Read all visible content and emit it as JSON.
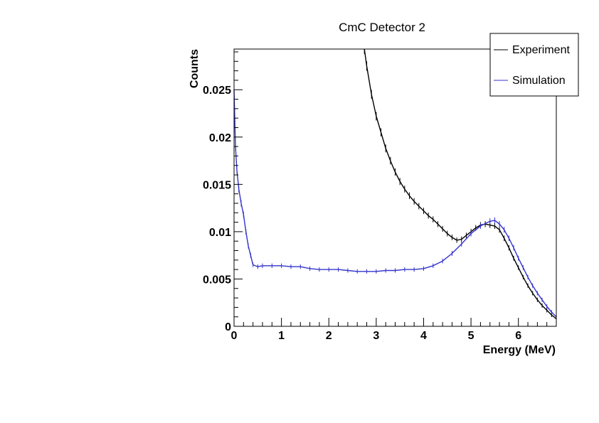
{
  "chart_data": {
    "type": "line",
    "title": "CmC Detector 2",
    "xlabel": "Energy (MeV)",
    "ylabel": "Counts",
    "xlim": [
      0,
      6.8
    ],
    "ylim": [
      0,
      0.0293
    ],
    "x_ticks": [
      0,
      1,
      2,
      3,
      4,
      5,
      6
    ],
    "x_tick_labels": [
      "0",
      "1",
      "2",
      "3",
      "4",
      "5",
      "6"
    ],
    "y_ticks": [
      0,
      0.005,
      0.01,
      0.015,
      0.02,
      0.025
    ],
    "y_tick_labels": [
      "0",
      "0.005",
      "0.01",
      "0.015",
      "0.02",
      "0.025"
    ],
    "legend_position": "top-right",
    "series": [
      {
        "name": "Experiment",
        "color": "#000000",
        "x": [
          2.75,
          2.8,
          2.9,
          3.0,
          3.1,
          3.2,
          3.3,
          3.4,
          3.5,
          3.6,
          3.7,
          3.8,
          3.9,
          4.0,
          4.1,
          4.2,
          4.3,
          4.4,
          4.5,
          4.6,
          4.7,
          4.8,
          4.9,
          5.0,
          5.1,
          5.2,
          5.3,
          5.4,
          5.5,
          5.6,
          5.7,
          5.8,
          5.9,
          6.0,
          6.1,
          6.2,
          6.3,
          6.4,
          6.5,
          6.6,
          6.7,
          6.8
        ],
        "y": [
          0.0293,
          0.0275,
          0.0245,
          0.0222,
          0.0205,
          0.0188,
          0.0175,
          0.0163,
          0.0153,
          0.0145,
          0.0138,
          0.0132,
          0.0127,
          0.0122,
          0.0117,
          0.0113,
          0.0108,
          0.0103,
          0.0098,
          0.0094,
          0.0091,
          0.0092,
          0.0096,
          0.01,
          0.0104,
          0.0107,
          0.0108,
          0.0107,
          0.0106,
          0.0102,
          0.0093,
          0.0083,
          0.0072,
          0.0062,
          0.0052,
          0.0043,
          0.0035,
          0.0028,
          0.0022,
          0.0017,
          0.0012,
          0.0008
        ]
      },
      {
        "name": "Simulation",
        "color": "#3333cc",
        "x": [
          0.0,
          0.03,
          0.06,
          0.1,
          0.15,
          0.2,
          0.25,
          0.3,
          0.35,
          0.4,
          0.5,
          0.6,
          0.8,
          1.0,
          1.2,
          1.4,
          1.6,
          1.8,
          2.0,
          2.2,
          2.4,
          2.6,
          2.8,
          3.0,
          3.2,
          3.4,
          3.6,
          3.8,
          4.0,
          4.2,
          4.4,
          4.6,
          4.8,
          5.0,
          5.2,
          5.4,
          5.5,
          5.6,
          5.7,
          5.8,
          5.9,
          6.0,
          6.1,
          6.2,
          6.3,
          6.4,
          6.5,
          6.6,
          6.7,
          6.8
        ],
        "y": [
          0.025,
          0.019,
          0.0165,
          0.0145,
          0.013,
          0.0118,
          0.01,
          0.0085,
          0.0075,
          0.0065,
          0.0063,
          0.0064,
          0.0064,
          0.0064,
          0.0063,
          0.0063,
          0.0061,
          0.006,
          0.006,
          0.006,
          0.0059,
          0.0058,
          0.0058,
          0.0058,
          0.0059,
          0.0059,
          0.006,
          0.006,
          0.0061,
          0.0064,
          0.0069,
          0.0077,
          0.0087,
          0.0098,
          0.0106,
          0.0111,
          0.0112,
          0.0108,
          0.0102,
          0.0093,
          0.0083,
          0.0072,
          0.0062,
          0.0052,
          0.0043,
          0.0035,
          0.0028,
          0.0021,
          0.0015,
          0.001
        ]
      }
    ]
  }
}
